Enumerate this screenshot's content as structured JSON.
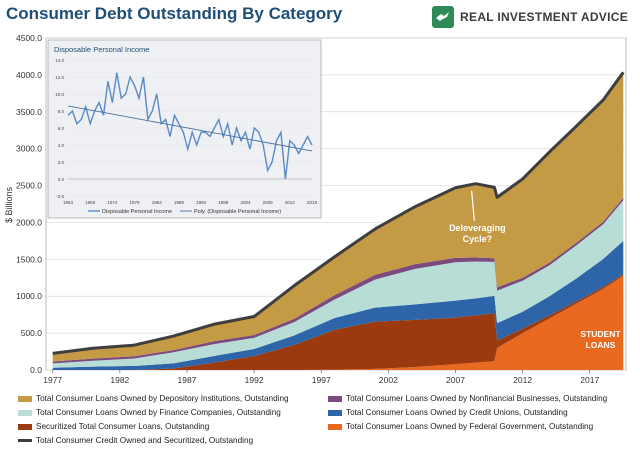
{
  "header": {
    "title": "Consumer Debt Outstanding By Category",
    "brand": "REAL INVESTMENT ADVICE"
  },
  "colors": {
    "depository": "#C49A45",
    "nonfinancial": "#7B4A7F",
    "finance": "#B7DDD6",
    "credit_unions": "#2E65A8",
    "securitized": "#9A3A0E",
    "federal": "#E8691F",
    "total": "#3E3E3E",
    "inset_line": "#5B8AC7"
  },
  "chart_data": [
    {
      "type": "area",
      "title": "Consumer Debt Outstanding By Category",
      "ylabel": "$ Billions",
      "xlabel": "",
      "ylim": [
        0,
        4500
      ],
      "yticks": [
        "0.0",
        "500.0",
        "1000.0",
        "1500.0",
        "2000.0",
        "2500.0",
        "3000.0",
        "3500.0",
        "4000.0",
        "4500.0"
      ],
      "xticks": [
        "1977",
        "1982",
        "1987",
        "1992",
        "1997",
        "2002",
        "2007",
        "2012",
        "2017"
      ],
      "x": [
        1977,
        1980,
        1983,
        1986,
        1989,
        1992,
        1995,
        1998,
        2001,
        2004,
        2007,
        2008.5,
        2009.9,
        2010.1,
        2012,
        2014,
        2016,
        2018,
        2019.5
      ],
      "stack_order": [
        "federal",
        "securitized",
        "credit_unions",
        "finance",
        "nonfinancial",
        "depository"
      ],
      "series": [
        {
          "key": "federal",
          "name": "Total Consumer Loans Owned by Federal Government, Outstanding",
          "values": [
            0,
            0,
            0,
            0,
            0,
            0,
            0,
            5,
            15,
            40,
            80,
            100,
            120,
            300,
            500,
            700,
            900,
            1100,
            1280
          ]
        },
        {
          "key": "securitized",
          "name": "Securitized Total Consumer Loans, Outstanding",
          "values": [
            0,
            0,
            0,
            20,
            100,
            190,
            340,
            540,
            640,
            640,
            630,
            640,
            650,
            100,
            60,
            40,
            30,
            25,
            20
          ]
        },
        {
          "key": "credit_unions",
          "name": "Total Consumer Loans Owned by Credit Unions, Outstanding",
          "values": [
            30,
            45,
            55,
            70,
            90,
            95,
            130,
            160,
            190,
            210,
            230,
            230,
            235,
            235,
            230,
            260,
            310,
            380,
            450
          ]
        },
        {
          "key": "finance",
          "name": "Total Consumer Loans Owned by Finance Companies, Outstanding",
          "values": [
            60,
            80,
            100,
            150,
            160,
            150,
            180,
            250,
            380,
            480,
            520,
            500,
            460,
            440,
            420,
            420,
            450,
            470,
            550
          ]
        },
        {
          "key": "nonfinancial",
          "name": "Total Consumer Loans Owned by Nonfinancial Businesses, Outstanding",
          "values": [
            25,
            30,
            30,
            30,
            40,
            40,
            45,
            60,
            65,
            65,
            60,
            55,
            50,
            45,
            40,
            35,
            35,
            35,
            35
          ]
        },
        {
          "key": "depository",
          "name": "Total Consumer Loans Owned by Depository Institutions, Outstanding",
          "values": [
            110,
            140,
            150,
            190,
            230,
            250,
            450,
            520,
            620,
            780,
            950,
            1000,
            960,
            1220,
            1340,
            1500,
            1580,
            1650,
            1700
          ]
        },
        {
          "key": "total",
          "name": "Total Consumer Credit Owned and Securitized, Outstanding",
          "values": [
            225,
            295,
            335,
            460,
            620,
            725,
            1145,
            1535,
            1910,
            2215,
            2470,
            2525,
            2475,
            2340,
            2590,
            2955,
            3305,
            3660,
            4035
          ]
        }
      ],
      "annotations": [
        {
          "text": "Deleveraging",
          "text2": "Cycle?",
          "x": 2007,
          "y": 1900
        },
        {
          "text": "STUDENT",
          "text2": "LOANS",
          "x": 2017,
          "y": 450
        }
      ],
      "legend_position": "bottom"
    },
    {
      "type": "line",
      "title": "Disposable Personal Income",
      "ylim": [
        -2.0,
        14.0
      ],
      "yticks": [
        "-2.0",
        "0.0",
        "2.0",
        "4.0",
        "6.0",
        "8.0",
        "10.0",
        "12.0",
        "14.0"
      ],
      "xticks": [
        "1964",
        "1969",
        "1974",
        "1979",
        "1984",
        "1989",
        "1994",
        "1999",
        "2004",
        "2009",
        "2014",
        "2019"
      ],
      "x": [
        1964,
        1965,
        1966,
        1967,
        1968,
        1969,
        1970,
        1971,
        1972,
        1973,
        1974,
        1975,
        1976,
        1977,
        1978,
        1979,
        1980,
        1981,
        1982,
        1983,
        1984,
        1985,
        1986,
        1987,
        1988,
        1989,
        1990,
        1991,
        1992,
        1993,
        1994,
        1995,
        1996,
        1997,
        1998,
        1999,
        2000,
        2001,
        2002,
        2003,
        2004,
        2005,
        2006,
        2007,
        2008,
        2009,
        2010,
        2011,
        2012,
        2013,
        2014,
        2015,
        2016,
        2017,
        2018,
        2019
      ],
      "series": [
        {
          "name": "Disposable Personal Income",
          "values": [
            7.5,
            8.0,
            6.5,
            7.0,
            8.5,
            6.5,
            8.0,
            9.0,
            7.5,
            11.5,
            9.0,
            12.5,
            9.5,
            10.0,
            12.0,
            11.0,
            9.5,
            12.0,
            7.0,
            8.0,
            10.0,
            6.5,
            7.0,
            5.0,
            7.5,
            6.5,
            5.5,
            3.5,
            5.5,
            4.0,
            5.5,
            5.5,
            5.0,
            6.0,
            7.0,
            5.0,
            6.5,
            4.0,
            6.0,
            4.5,
            5.5,
            3.5,
            6.0,
            5.5,
            4.0,
            1.0,
            2.0,
            4.5,
            5.5,
            0.0,
            4.5,
            4.0,
            3.0,
            4.0,
            5.0,
            4.0
          ]
        },
        {
          "name": "Poly. (Disposable Personal Income)",
          "values_start": 8.6,
          "values_end": 3.3
        }
      ],
      "legend_position": "bottom"
    }
  ]
}
